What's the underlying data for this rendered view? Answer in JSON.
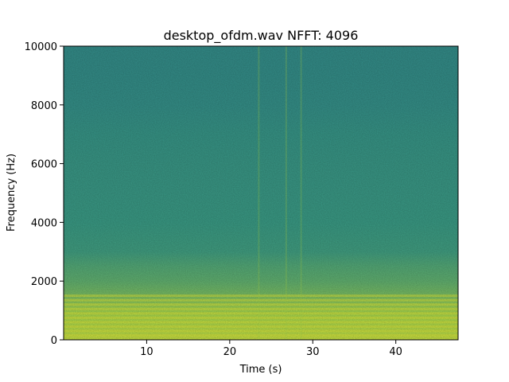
{
  "chart_data": {
    "type": "heatmap",
    "title": "desktop_ofdm.wav  NFFT: 4096",
    "xlabel": "Time (s)",
    "ylabel": "Frequency (Hz)",
    "xlim": [
      0,
      47.5
    ],
    "ylim": [
      0,
      10000
    ],
    "x_ticks": [
      10,
      20,
      30,
      40
    ],
    "y_ticks": [
      0,
      2000,
      4000,
      6000,
      8000,
      10000
    ],
    "grid": false,
    "colormap": "viridis",
    "colors": {
      "low": "#2b7b8c",
      "mid": "#3a9a83",
      "high": "#a9d64a",
      "peak": "#d6e23a"
    },
    "power_profile": {
      "frequency_hz": [
        0,
        200,
        400,
        600,
        800,
        1000,
        1200,
        1500,
        2000,
        2500,
        3000,
        4000,
        5000,
        6000,
        7000,
        8000,
        9000,
        10000
      ],
      "relative_level": [
        0.95,
        0.9,
        0.88,
        0.86,
        0.85,
        0.82,
        0.78,
        0.7,
        0.62,
        0.58,
        0.52,
        0.48,
        0.45,
        0.42,
        0.38,
        0.3,
        0.27,
        0.25
      ]
    },
    "narrowband_lines_hz": [
      150,
      300,
      450,
      600,
      750,
      900,
      1050,
      1200,
      1350,
      1500
    ],
    "transient_times_s": [
      23.5,
      26.8,
      28.6
    ]
  }
}
